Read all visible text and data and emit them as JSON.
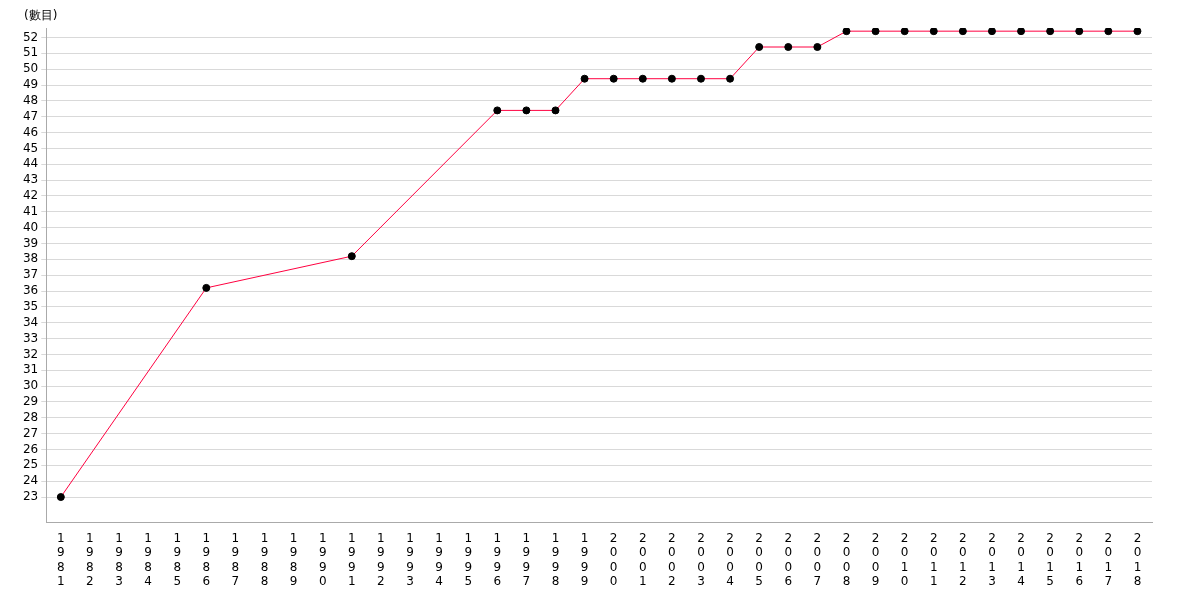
{
  "chart_data": {
    "type": "line",
    "ylabel": "(數目)",
    "categories": [
      "1981",
      "1982",
      "1983",
      "1984",
      "1985",
      "1986",
      "1987",
      "1988",
      "1989",
      "1990",
      "1991",
      "1992",
      "1993",
      "1994",
      "1995",
      "1996",
      "1997",
      "1998",
      "1999",
      "2000",
      "2001",
      "2002",
      "2003",
      "2004",
      "2005",
      "2006",
      "2007",
      "2008",
      "2009",
      "2010",
      "2011",
      "2012",
      "2013",
      "2014",
      "2015",
      "2016",
      "2017",
      "2018"
    ],
    "series": [
      {
        "color": "#ff0040",
        "values": [
          23,
          null,
          null,
          null,
          null,
          36.2,
          null,
          null,
          null,
          null,
          38.2,
          null,
          null,
          null,
          null,
          47.4,
          47.4,
          47.4,
          49.4,
          49.4,
          49.4,
          49.4,
          49.4,
          49.4,
          51.4,
          51.4,
          51.4,
          52.4,
          52.4,
          52.4,
          52.4,
          52.4,
          52.4,
          52.4,
          52.4,
          52.4,
          52.4,
          52.4
        ]
      }
    ],
    "ylim": [
      21.4,
      52.6
    ],
    "yticks": [
      23,
      24,
      25,
      26,
      27,
      28,
      29,
      30,
      31,
      32,
      33,
      34,
      35,
      36,
      37,
      38,
      39,
      40,
      41,
      42,
      43,
      44,
      45,
      46,
      47,
      48,
      49,
      50,
      51,
      52
    ],
    "grid": "y",
    "legend": false,
    "marker": "circle",
    "line_style": "solid"
  }
}
